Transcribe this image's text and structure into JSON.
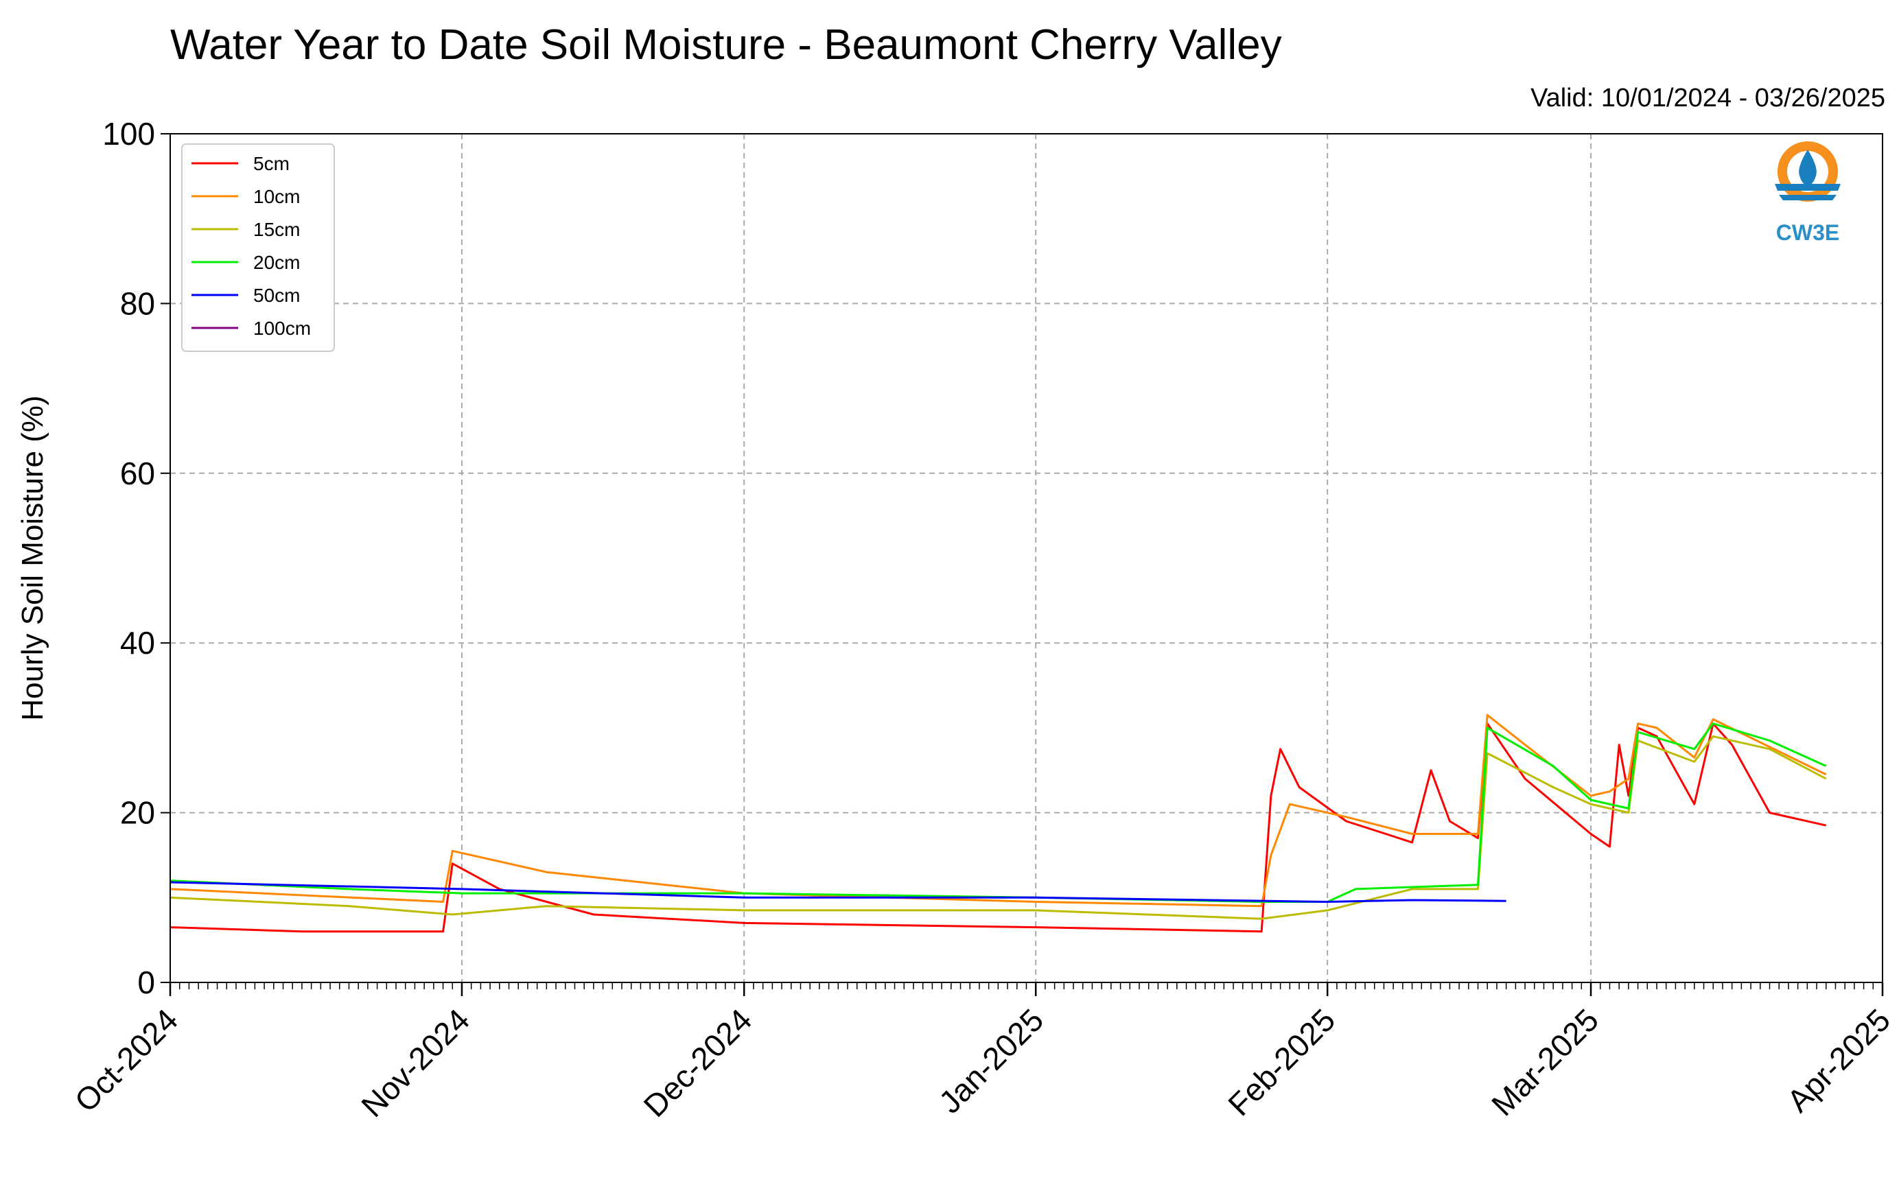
{
  "chart_data": {
    "type": "line",
    "title": "Water Year to Date Soil Moisture - Beaumont Cherry Valley",
    "subtitle": "Valid: 10/01/2024 - 03/26/2025",
    "ylabel": "Hourly Soil Moisture (%)",
    "xlabel": "",
    "ylim": [
      0,
      100
    ],
    "xlim": [
      "2024-10-01",
      "2025-04-01"
    ],
    "y_ticks": [
      "0",
      "20",
      "40",
      "60",
      "80",
      "100"
    ],
    "x_ticks": [
      "Oct-2024",
      "Nov-2024",
      "Dec-2024",
      "Jan-2025",
      "Feb-2025",
      "Mar-2025",
      "Apr-2025"
    ],
    "grid": true,
    "legend_position": "top-left",
    "logo_text": "CW3E",
    "series": [
      {
        "name": "5cm",
        "color": "#ff0000",
        "points": [
          [
            "2024-10-01",
            6.5
          ],
          [
            "2024-10-15",
            6.0
          ],
          [
            "2024-10-30",
            6.0
          ],
          [
            "2024-10-31",
            14.0
          ],
          [
            "2024-11-05",
            11.0
          ],
          [
            "2024-11-15",
            8.0
          ],
          [
            "2024-12-01",
            7.0
          ],
          [
            "2025-01-01",
            6.5
          ],
          [
            "2025-01-25",
            6.0
          ],
          [
            "2025-01-26",
            22.0
          ],
          [
            "2025-01-27",
            27.5
          ],
          [
            "2025-01-29",
            23.0
          ],
          [
            "2025-02-03",
            19.0
          ],
          [
            "2025-02-10",
            16.5
          ],
          [
            "2025-02-12",
            25.0
          ],
          [
            "2025-02-14",
            19.0
          ],
          [
            "2025-02-17",
            17.0
          ],
          [
            "2025-02-18",
            30.5
          ],
          [
            "2025-02-22",
            24.0
          ],
          [
            "2025-03-01",
            17.5
          ],
          [
            "2025-03-03",
            16.0
          ],
          [
            "2025-03-04",
            28.0
          ],
          [
            "2025-03-05",
            22.0
          ],
          [
            "2025-03-06",
            30.0
          ],
          [
            "2025-03-08",
            29.0
          ],
          [
            "2025-03-10",
            25.0
          ],
          [
            "2025-03-12",
            21.0
          ],
          [
            "2025-03-14",
            30.5
          ],
          [
            "2025-03-16",
            28.0
          ],
          [
            "2025-03-18",
            24.0
          ],
          [
            "2025-03-20",
            20.0
          ],
          [
            "2025-03-26",
            18.5
          ]
        ]
      },
      {
        "name": "10cm",
        "color": "#ff8800",
        "points": [
          [
            "2024-10-01",
            11.0
          ],
          [
            "2024-10-30",
            9.5
          ],
          [
            "2024-10-31",
            15.5
          ],
          [
            "2024-11-10",
            13.0
          ],
          [
            "2024-12-01",
            10.5
          ],
          [
            "2025-01-01",
            9.5
          ],
          [
            "2025-01-25",
            9.0
          ],
          [
            "2025-01-26",
            15.0
          ],
          [
            "2025-01-28",
            21.0
          ],
          [
            "2025-02-03",
            19.5
          ],
          [
            "2025-02-10",
            17.5
          ],
          [
            "2025-02-17",
            17.5
          ],
          [
            "2025-02-18",
            31.5
          ],
          [
            "2025-02-22",
            28.0
          ],
          [
            "2025-03-01",
            22.0
          ],
          [
            "2025-03-03",
            22.5
          ],
          [
            "2025-03-05",
            24.0
          ],
          [
            "2025-03-06",
            30.5
          ],
          [
            "2025-03-08",
            30.0
          ],
          [
            "2025-03-12",
            26.5
          ],
          [
            "2025-03-14",
            31.0
          ],
          [
            "2025-03-26",
            24.5
          ]
        ]
      },
      {
        "name": "15cm",
        "color": "#bbbb00",
        "points": [
          [
            "2024-10-01",
            10.0
          ],
          [
            "2024-10-20",
            9.0
          ],
          [
            "2024-10-31",
            8.0
          ],
          [
            "2024-11-10",
            9.0
          ],
          [
            "2024-12-01",
            8.5
          ],
          [
            "2025-01-01",
            8.5
          ],
          [
            "2025-01-25",
            7.5
          ],
          [
            "2025-02-01",
            8.5
          ],
          [
            "2025-02-10",
            11.0
          ],
          [
            "2025-02-17",
            11.0
          ],
          [
            "2025-02-18",
            27.0
          ],
          [
            "2025-02-25",
            23.0
          ],
          [
            "2025-03-01",
            21.0
          ],
          [
            "2025-03-05",
            20.0
          ],
          [
            "2025-03-06",
            28.5
          ],
          [
            "2025-03-12",
            26.0
          ],
          [
            "2025-03-14",
            29.0
          ],
          [
            "2025-03-20",
            27.5
          ],
          [
            "2025-03-26",
            24.0
          ]
        ]
      },
      {
        "name": "20cm",
        "color": "#00ee00",
        "points": [
          [
            "2024-10-01",
            12.0
          ],
          [
            "2024-10-20",
            11.0
          ],
          [
            "2024-11-01",
            10.5
          ],
          [
            "2024-12-01",
            10.5
          ],
          [
            "2025-01-01",
            10.0
          ],
          [
            "2025-01-25",
            9.5
          ],
          [
            "2025-02-01",
            9.5
          ],
          [
            "2025-02-04",
            11.0
          ],
          [
            "2025-02-17",
            11.5
          ],
          [
            "2025-02-18",
            30.0
          ],
          [
            "2025-02-25",
            25.5
          ],
          [
            "2025-03-01",
            21.5
          ],
          [
            "2025-03-05",
            20.5
          ],
          [
            "2025-03-06",
            29.5
          ],
          [
            "2025-03-12",
            27.5
          ],
          [
            "2025-03-14",
            30.5
          ],
          [
            "2025-03-20",
            28.5
          ],
          [
            "2025-03-26",
            25.5
          ]
        ]
      },
      {
        "name": "50cm",
        "color": "#0000ff",
        "points": [
          [
            "2024-10-01",
            11.8
          ],
          [
            "2024-11-01",
            11.0
          ],
          [
            "2024-12-01",
            10.0
          ],
          [
            "2025-01-01",
            10.0
          ],
          [
            "2025-02-01",
            9.5
          ],
          [
            "2025-02-10",
            9.7
          ],
          [
            "2025-02-20",
            9.6
          ]
        ]
      },
      {
        "name": "100cm",
        "color": "#800080",
        "points": []
      }
    ]
  }
}
